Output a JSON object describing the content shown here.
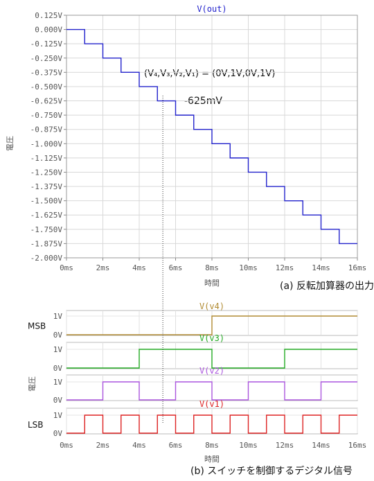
{
  "chart_data": [
    {
      "type": "line",
      "title": "V(out)",
      "ylabel": "電圧",
      "xlabel": "時間",
      "color": "#2222cc",
      "grid": true,
      "xlim": [
        0,
        16
      ],
      "ylim": [
        -2.0,
        0.125
      ],
      "x_ticks": [
        "0ms",
        "2ms",
        "4ms",
        "6ms",
        "8ms",
        "10ms",
        "12ms",
        "14ms",
        "16ms"
      ],
      "y_ticks": [
        "0.125V",
        "0.000V",
        "-0.125V",
        "-0.250V",
        "-0.375V",
        "-0.500V",
        "-0.625V",
        "-0.750V",
        "-0.875V",
        "-1.000V",
        "-1.125V",
        "-1.250V",
        "-1.375V",
        "-1.500V",
        "-1.625V",
        "-1.750V",
        "-1.875V",
        "-2.000V"
      ],
      "series": [
        {
          "name": "V(out)",
          "x": [
            0,
            1,
            2,
            3,
            4,
            5,
            6,
            7,
            8,
            9,
            10,
            11,
            12,
            13,
            14,
            15,
            16
          ],
          "y": [
            0,
            -0.125,
            -0.25,
            -0.375,
            -0.5,
            -0.625,
            -0.75,
            -0.875,
            -1.0,
            -1.125,
            -1.25,
            -1.375,
            -1.5,
            -1.625,
            -1.75,
            -1.875,
            -1.875
          ]
        }
      ],
      "annotations": [
        "(V₄,V₃,V₂,V₁) = (0V,1V,0V,1V)",
        "-625mV"
      ],
      "caption": "(a) 反転加算器の出力電圧"
    },
    {
      "type": "line",
      "ylabel": "電圧",
      "xlabel": "時間",
      "grid": true,
      "xlim": [
        0,
        16
      ],
      "x_ticks": [
        "0ms",
        "2ms",
        "4ms",
        "6ms",
        "8ms",
        "10ms",
        "12ms",
        "14ms",
        "16ms"
      ],
      "y_ticks": [
        "1V",
        "0V"
      ],
      "series": [
        {
          "name": "V(v4)",
          "side_label": "MSB",
          "color": "#b08a30",
          "period_ms": 16
        },
        {
          "name": "V(v3)",
          "side_label": "",
          "color": "#22aa22",
          "period_ms": 8
        },
        {
          "name": "V(v2)",
          "side_label": "",
          "color": "#aa55dd",
          "period_ms": 4
        },
        {
          "name": "V(v1)",
          "side_label": "LSB",
          "color": "#dd2222",
          "period_ms": 2
        }
      ],
      "caption": "(b) スイッチを制御するデジタル信号"
    }
  ]
}
